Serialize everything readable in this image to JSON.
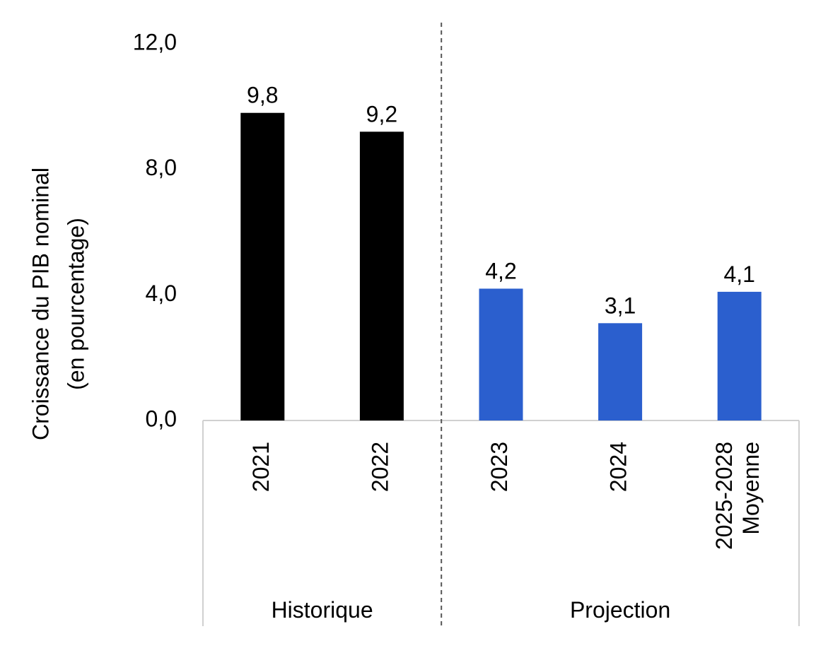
{
  "chart_data": {
    "type": "bar",
    "title": "",
    "ylabel_lines": [
      "Croissance du PIB nominal",
      "(en pourcentage)"
    ],
    "xlabel": "",
    "ylim": [
      0,
      12
    ],
    "yticks": [
      0,
      4,
      8,
      12
    ],
    "ytick_labels": [
      "0,0",
      "4,0",
      "8,0",
      "12,0"
    ],
    "grid": false,
    "legend": "none",
    "categories": [
      {
        "lines": [
          "2021"
        ],
        "value": 9.8,
        "label": "9,8",
        "group": "historique",
        "color": "#000000"
      },
      {
        "lines": [
          "2022"
        ],
        "value": 9.2,
        "label": "9,2",
        "group": "historique",
        "color": "#000000"
      },
      {
        "lines": [
          "2023"
        ],
        "value": 4.2,
        "label": "4,2",
        "group": "projection",
        "color": "#2b5fce"
      },
      {
        "lines": [
          "2024"
        ],
        "value": 3.1,
        "label": "3,1",
        "group": "projection",
        "color": "#2b5fce"
      },
      {
        "lines": [
          "2025-2028",
          "Moyenne"
        ],
        "value": 4.1,
        "label": "4,1",
        "group": "projection",
        "color": "#2b5fce"
      }
    ],
    "groups": [
      {
        "id": "historique",
        "label": "Historique"
      },
      {
        "id": "projection",
        "label": "Projection"
      }
    ],
    "divider": "dashed"
  }
}
